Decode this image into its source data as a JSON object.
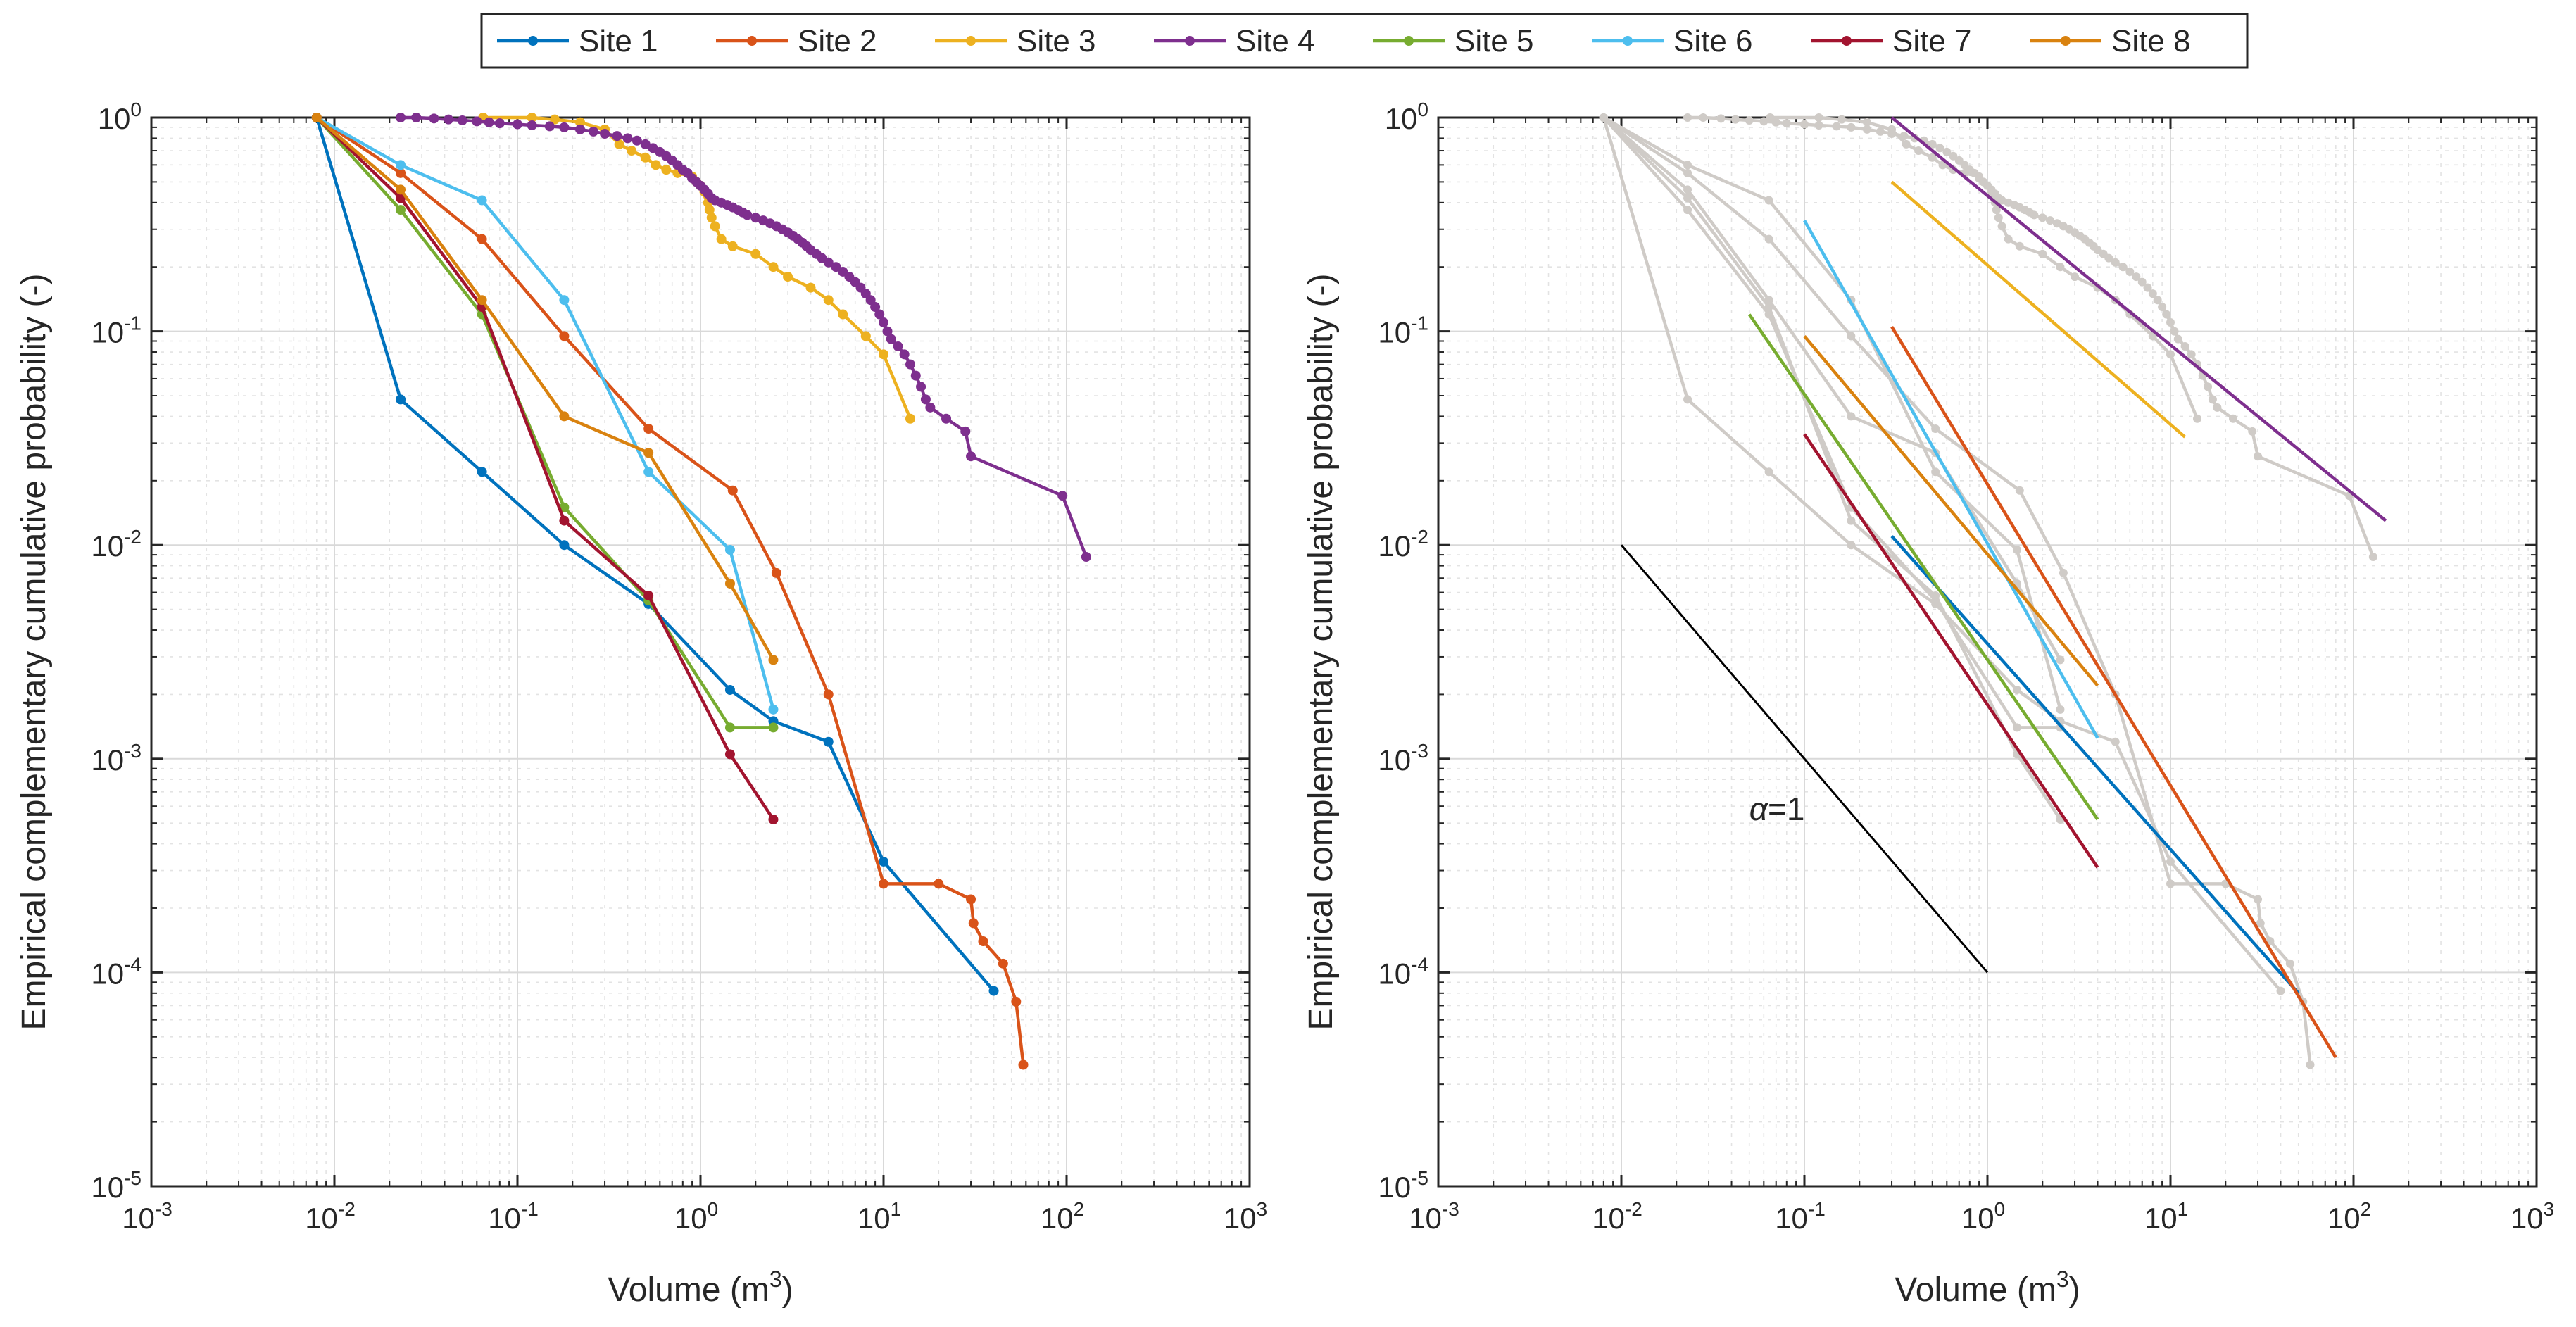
{
  "legend": {
    "placement": "top-center",
    "entries": [
      {
        "label": "Site 1",
        "color": "#0072BD"
      },
      {
        "label": "Site 2",
        "color": "#D95319"
      },
      {
        "label": "Site 3",
        "color": "#EDB120"
      },
      {
        "label": "Site 4",
        "color": "#7E2F8E"
      },
      {
        "label": "Site 5",
        "color": "#77AC30"
      },
      {
        "label": "Site 6",
        "color": "#4DBEEE"
      },
      {
        "label": "Site 7",
        "color": "#A2142F"
      },
      {
        "label": "Site 8",
        "color": "#D9820F"
      }
    ]
  },
  "chart_data": [
    {
      "type": "line",
      "xscale": "log",
      "yscale": "log",
      "xlim": [
        0.001,
        1000
      ],
      "ylim": [
        1e-05,
        1
      ],
      "xlabel": "Volume (m",
      "xlabel_sup": "3",
      "xlabel_end": ")",
      "ylabel": "Empirical complementary cumulative probability (-)",
      "x_ticks": [
        {
          "base": "10",
          "exp": "-3"
        },
        {
          "base": "10",
          "exp": "-2"
        },
        {
          "base": "10",
          "exp": "-1"
        },
        {
          "base": "10",
          "exp": "0"
        },
        {
          "base": "10",
          "exp": "1"
        },
        {
          "base": "10",
          "exp": "2"
        },
        {
          "base": "10",
          "exp": "3"
        }
      ],
      "y_ticks": [
        {
          "base": "10",
          "exp": "-5"
        },
        {
          "base": "10",
          "exp": "-4"
        },
        {
          "base": "10",
          "exp": "-3"
        },
        {
          "base": "10",
          "exp": "-2"
        },
        {
          "base": "10",
          "exp": "-1"
        },
        {
          "base": "10",
          "exp": "0"
        }
      ],
      "grid": true,
      "series": [
        {
          "name": "Site 1",
          "color": "#0072BD",
          "points": [
            [
              0.008,
              1
            ],
            [
              0.023,
              0.048
            ],
            [
              0.064,
              0.022
            ],
            [
              0.18,
              0.01
            ],
            [
              0.52,
              0.0053
            ],
            [
              1.45,
              0.0021
            ],
            [
              2.5,
              0.0015
            ],
            [
              5,
              0.0012
            ],
            [
              10,
              0.00033
            ],
            [
              40,
              8.2e-05
            ]
          ]
        },
        {
          "name": "Site 2",
          "color": "#D95319",
          "points": [
            [
              0.008,
              1
            ],
            [
              0.023,
              0.55
            ],
            [
              0.064,
              0.27
            ],
            [
              0.18,
              0.095
            ],
            [
              0.52,
              0.035
            ],
            [
              1.5,
              0.018
            ],
            [
              2.6,
              0.0074
            ],
            [
              5,
              0.002
            ],
            [
              10,
              0.00026
            ],
            [
              20,
              0.00026
            ],
            [
              30,
              0.00022
            ],
            [
              31,
              0.00017
            ],
            [
              35,
              0.00014
            ],
            [
              45,
              0.00011
            ],
            [
              53,
              7.3e-05
            ],
            [
              58,
              3.7e-05
            ]
          ]
        },
        {
          "name": "Site 3",
          "color": "#EDB120",
          "points": [
            [
              0.065,
              1
            ],
            [
              0.12,
              1
            ],
            [
              0.16,
              0.98
            ],
            [
              0.22,
              0.95
            ],
            [
              0.3,
              0.88
            ],
            [
              0.36,
              0.75
            ],
            [
              0.42,
              0.7
            ],
            [
              0.5,
              0.65
            ],
            [
              0.57,
              0.6
            ],
            [
              0.65,
              0.57
            ],
            [
              0.75,
              0.55
            ],
            [
              0.9,
              0.53
            ],
            [
              0.95,
              0.5
            ],
            [
              1.0,
              0.48
            ],
            [
              1.05,
              0.45
            ],
            [
              1.1,
              0.43
            ],
            [
              1.1,
              0.4
            ],
            [
              1.12,
              0.37
            ],
            [
              1.15,
              0.34
            ],
            [
              1.2,
              0.31
            ],
            [
              1.3,
              0.27
            ],
            [
              1.5,
              0.25
            ],
            [
              2,
              0.23
            ],
            [
              2.5,
              0.2
            ],
            [
              3,
              0.18
            ],
            [
              4,
              0.16
            ],
            [
              5,
              0.14
            ],
            [
              6,
              0.12
            ],
            [
              8,
              0.095
            ],
            [
              10,
              0.078
            ],
            [
              14,
              0.039
            ]
          ]
        },
        {
          "name": "Site 4",
          "color": "#7E2F8E",
          "points": [
            [
              0.023,
              1
            ],
            [
              0.028,
              1
            ],
            [
              0.035,
              0.99
            ],
            [
              0.042,
              0.98
            ],
            [
              0.05,
              0.97
            ],
            [
              0.06,
              0.96
            ],
            [
              0.07,
              0.95
            ],
            [
              0.08,
              0.94
            ],
            [
              0.1,
              0.93
            ],
            [
              0.12,
              0.92
            ],
            [
              0.15,
              0.91
            ],
            [
              0.18,
              0.9
            ],
            [
              0.22,
              0.88
            ],
            [
              0.26,
              0.86
            ],
            [
              0.3,
              0.84
            ],
            [
              0.35,
              0.82
            ],
            [
              0.4,
              0.8
            ],
            [
              0.45,
              0.78
            ],
            [
              0.5,
              0.75
            ],
            [
              0.55,
              0.72
            ],
            [
              0.6,
              0.69
            ],
            [
              0.65,
              0.66
            ],
            [
              0.7,
              0.63
            ],
            [
              0.75,
              0.6
            ],
            [
              0.8,
              0.57
            ],
            [
              0.85,
              0.55
            ],
            [
              0.9,
              0.52
            ],
            [
              0.95,
              0.5
            ],
            [
              1.0,
              0.48
            ],
            [
              1.05,
              0.46
            ],
            [
              1.1,
              0.44
            ],
            [
              1.15,
              0.42
            ],
            [
              1.2,
              0.41
            ],
            [
              1.3,
              0.4
            ],
            [
              1.4,
              0.39
            ],
            [
              1.5,
              0.38
            ],
            [
              1.6,
              0.37
            ],
            [
              1.7,
              0.36
            ],
            [
              1.8,
              0.35
            ],
            [
              2.0,
              0.34
            ],
            [
              2.2,
              0.33
            ],
            [
              2.4,
              0.32
            ],
            [
              2.6,
              0.31
            ],
            [
              2.8,
              0.3
            ],
            [
              3.0,
              0.29
            ],
            [
              3.2,
              0.28
            ],
            [
              3.4,
              0.27
            ],
            [
              3.6,
              0.26
            ],
            [
              3.8,
              0.25
            ],
            [
              4.0,
              0.24
            ],
            [
              4.3,
              0.23
            ],
            [
              4.6,
              0.22
            ],
            [
              5.0,
              0.21
            ],
            [
              5.5,
              0.2
            ],
            [
              6.0,
              0.19
            ],
            [
              6.5,
              0.18
            ],
            [
              7.0,
              0.17
            ],
            [
              7.5,
              0.16
            ],
            [
              8.0,
              0.15
            ],
            [
              8.5,
              0.14
            ],
            [
              9.0,
              0.13
            ],
            [
              9.5,
              0.12
            ],
            [
              10,
              0.11
            ],
            [
              10.5,
              0.1
            ],
            [
              11,
              0.092
            ],
            [
              12,
              0.085
            ],
            [
              13,
              0.078
            ],
            [
              14,
              0.07
            ],
            [
              15,
              0.062
            ],
            [
              16,
              0.055
            ],
            [
              17,
              0.048
            ],
            [
              18,
              0.044
            ],
            [
              22,
              0.039
            ],
            [
              28,
              0.034
            ],
            [
              30,
              0.026
            ],
            [
              95,
              0.017
            ],
            [
              128,
              0.0088
            ]
          ]
        },
        {
          "name": "Site 5",
          "color": "#77AC30",
          "points": [
            [
              0.008,
              1
            ],
            [
              0.023,
              0.37
            ],
            [
              0.064,
              0.12
            ],
            [
              0.18,
              0.015
            ],
            [
              0.52,
              0.0055
            ],
            [
              1.45,
              0.0014
            ],
            [
              2.5,
              0.0014
            ]
          ]
        },
        {
          "name": "Site 6",
          "color": "#4DBEEE",
          "points": [
            [
              0.008,
              1
            ],
            [
              0.023,
              0.6
            ],
            [
              0.064,
              0.41
            ],
            [
              0.18,
              0.14
            ],
            [
              0.52,
              0.022
            ],
            [
              1.45,
              0.0095
            ],
            [
              2.5,
              0.0017
            ]
          ]
        },
        {
          "name": "Site 7",
          "color": "#A2142F",
          "points": [
            [
              0.008,
              1
            ],
            [
              0.023,
              0.42
            ],
            [
              0.064,
              0.13
            ],
            [
              0.18,
              0.013
            ],
            [
              0.52,
              0.0058
            ],
            [
              1.45,
              0.00105
            ],
            [
              2.5,
              0.00052
            ]
          ]
        },
        {
          "name": "Site 8",
          "color": "#D9820F",
          "points": [
            [
              0.008,
              1
            ],
            [
              0.023,
              0.46
            ],
            [
              0.064,
              0.14
            ],
            [
              0.18,
              0.04
            ],
            [
              0.52,
              0.027
            ],
            [
              1.45,
              0.0066
            ],
            [
              2.5,
              0.0029
            ]
          ]
        }
      ]
    },
    {
      "type": "line",
      "xscale": "log",
      "yscale": "log",
      "xlim": [
        0.001,
        1000
      ],
      "ylim": [
        1e-05,
        1
      ],
      "xlabel": "Volume (m",
      "xlabel_sup": "3",
      "xlabel_end": ")",
      "ylabel": "Empirical complementary cumulative probability (-)",
      "x_ticks": [
        {
          "base": "10",
          "exp": "-3"
        },
        {
          "base": "10",
          "exp": "-2"
        },
        {
          "base": "10",
          "exp": "-1"
        },
        {
          "base": "10",
          "exp": "0"
        },
        {
          "base": "10",
          "exp": "1"
        },
        {
          "base": "10",
          "exp": "2"
        },
        {
          "base": "10",
          "exp": "3"
        }
      ],
      "y_ticks": [
        {
          "base": "10",
          "exp": "-5"
        },
        {
          "base": "10",
          "exp": "-4"
        },
        {
          "base": "10",
          "exp": "-3"
        },
        {
          "base": "10",
          "exp": "-2"
        },
        {
          "base": "10",
          "exp": "-1"
        },
        {
          "base": "10",
          "exp": "0"
        }
      ],
      "grid": true,
      "background_color": "#CFCBC7",
      "background_series": "all sites (empirical data, grey)",
      "fit_lines": [
        {
          "site": "Site 1",
          "color": "#0072BD",
          "points": [
            [
              0.3,
              0.011
            ],
            [
              50,
              8e-05
            ]
          ]
        },
        {
          "site": "Site 2",
          "color": "#D95319",
          "points": [
            [
              0.3,
              0.105
            ],
            [
              80,
              4e-05
            ]
          ]
        },
        {
          "site": "Site 3",
          "color": "#EDB120",
          "points": [
            [
              0.3,
              0.5
            ],
            [
              12,
              0.032
            ]
          ]
        },
        {
          "site": "Site 4",
          "color": "#7E2F8E",
          "points": [
            [
              0.3,
              1
            ],
            [
              150,
              0.013
            ]
          ]
        },
        {
          "site": "Site 5",
          "color": "#77AC30",
          "points": [
            [
              0.05,
              0.12
            ],
            [
              4,
              0.00052
            ]
          ]
        },
        {
          "site": "Site 6",
          "color": "#4DBEEE",
          "points": [
            [
              0.1,
              0.33
            ],
            [
              4,
              0.00125
            ]
          ]
        },
        {
          "site": "Site 7",
          "color": "#A2142F",
          "points": [
            [
              0.1,
              0.033
            ],
            [
              4,
              0.00031
            ]
          ]
        },
        {
          "site": "Site 8",
          "color": "#D9820F",
          "points": [
            [
              0.1,
              0.095
            ],
            [
              4,
              0.0022
            ]
          ]
        }
      ],
      "reference_line": {
        "color": "#000000",
        "points": [
          [
            0.01,
            0.01
          ],
          [
            1,
            0.0001
          ]
        ]
      },
      "annotation": {
        "prefix": "α",
        "text": "=1",
        "at": [
          0.05,
          0.0005
        ]
      }
    }
  ]
}
